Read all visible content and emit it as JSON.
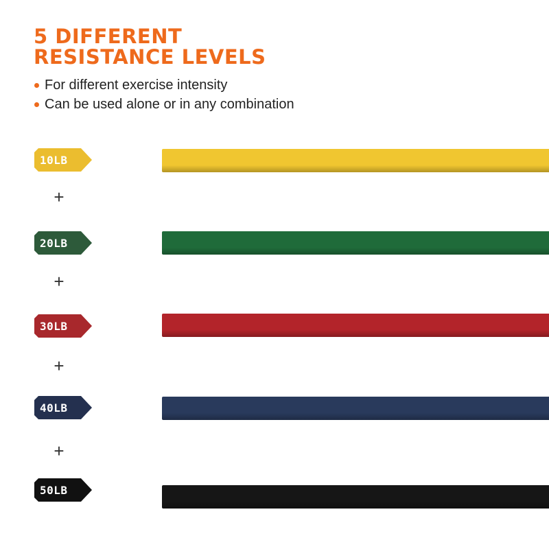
{
  "title_lines": [
    "5 DIFFERENT",
    "RESISTANCE LEVELS"
  ],
  "bullets": [
    "For different exercise intensity",
    "Can be used alone or in any combination"
  ],
  "accent_color": "#ee6a1c",
  "plus_symbol": "+",
  "levels": [
    {
      "label": "10LB",
      "tag_color": "#ebbd2f",
      "band_color": "#f0c630"
    },
    {
      "label": "20LB",
      "tag_color": "#2d5a3a",
      "band_color": "#1f6b3a"
    },
    {
      "label": "30LB",
      "tag_color": "#a8282c",
      "band_color": "#b3242a"
    },
    {
      "label": "40LB",
      "tag_color": "#24304f",
      "band_color": "#293a5c"
    },
    {
      "label": "50LB",
      "tag_color": "#111111",
      "band_color": "#161616"
    }
  ]
}
